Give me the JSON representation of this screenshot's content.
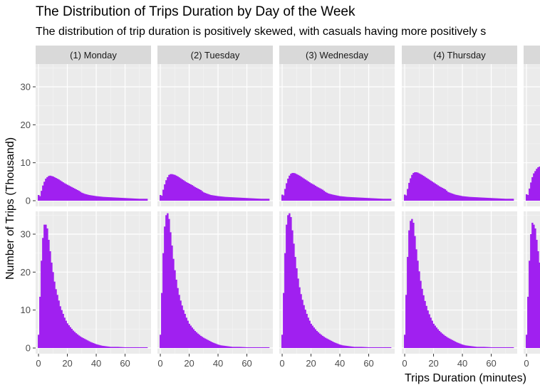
{
  "chart_data": {
    "type": "bar",
    "title": "The Distribution of Trips Duration by Day of the Week",
    "subtitle": "The distribution of trip duration is positively skewed, with casuals having more positively s",
    "xlabel": "Trips Duration (minutes)",
    "ylabel": "Number of Trips (Thousand)",
    "xlim": [
      -2,
      78
    ],
    "ylim": [
      -1.5,
      36
    ],
    "x_ticks": [
      0,
      20,
      40,
      60
    ],
    "y_ticks": [
      0,
      10,
      20,
      30
    ],
    "bar_color": "#A020F0",
    "panel_background": "#EBEBEB",
    "grid": true,
    "facets": [
      "(1) Monday",
      "(2) Tuesday",
      "(3) Wednesday",
      "(4) Thursday",
      ""
    ],
    "bin_width_minutes": 1,
    "rows": [
      {
        "row": 1,
        "series": [
          {
            "facet": "(1) Monday",
            "x": [
              0,
              1,
              2,
              3,
              4,
              5,
              6,
              7,
              8,
              9,
              10,
              12,
              14,
              16,
              18,
              20,
              22,
              24,
              26,
              28,
              30,
              32,
              35,
              40,
              45,
              50,
              55,
              60,
              65,
              70,
              75
            ],
            "values": [
              1.5,
              1.2,
              2.6,
              4.0,
              5.0,
              5.8,
              6.2,
              6.5,
              6.6,
              6.5,
              6.4,
              6.0,
              5.6,
              5.1,
              4.6,
              4.2,
              3.8,
              3.4,
              3.0,
              2.6,
              2.1,
              1.8,
              1.5,
              1.2,
              1.0,
              0.9,
              0.8,
              0.7,
              0.6,
              0.5,
              0.5
            ]
          },
          {
            "facet": "(2) Tuesday",
            "x": [
              0,
              1,
              2,
              3,
              4,
              5,
              6,
              7,
              8,
              9,
              10,
              12,
              14,
              16,
              18,
              20,
              22,
              24,
              26,
              28,
              30,
              32,
              35,
              40,
              45,
              50,
              55,
              60,
              65,
              70,
              75
            ],
            "values": [
              1.5,
              1.3,
              2.9,
              4.3,
              5.4,
              6.2,
              6.8,
              7.0,
              7.0,
              6.9,
              6.8,
              6.4,
              5.9,
              5.4,
              4.9,
              4.5,
              4.1,
              3.6,
              3.2,
              2.8,
              2.2,
              1.9,
              1.5,
              1.2,
              1.0,
              0.9,
              0.8,
              0.7,
              0.6,
              0.5,
              0.5
            ]
          },
          {
            "facet": "(3) Wednesday",
            "x": [
              0,
              1,
              2,
              3,
              4,
              5,
              6,
              7,
              8,
              9,
              10,
              12,
              14,
              16,
              18,
              20,
              22,
              24,
              26,
              28,
              30,
              32,
              35,
              40,
              45,
              50,
              55,
              60,
              65,
              70,
              75
            ],
            "values": [
              1.6,
              1.4,
              3.1,
              4.6,
              5.8,
              6.6,
              7.1,
              7.3,
              7.3,
              7.2,
              7.0,
              6.6,
              6.1,
              5.6,
              5.1,
              4.6,
              4.2,
              3.7,
              3.3,
              2.9,
              2.3,
              1.9,
              1.6,
              1.2,
              1.0,
              0.9,
              0.8,
              0.7,
              0.6,
              0.5,
              0.5
            ]
          },
          {
            "facet": "(4) Thursday",
            "x": [
              0,
              1,
              2,
              3,
              4,
              5,
              6,
              7,
              8,
              9,
              10,
              12,
              14,
              16,
              18,
              20,
              22,
              24,
              26,
              28,
              30,
              32,
              35,
              40,
              45,
              50,
              55,
              60,
              65,
              70,
              75
            ],
            "values": [
              1.6,
              1.4,
              3.1,
              4.7,
              5.9,
              6.8,
              7.3,
              7.5,
              7.5,
              7.4,
              7.2,
              6.8,
              6.3,
              5.8,
              5.3,
              4.8,
              4.3,
              3.8,
              3.4,
              3.0,
              2.3,
              2.0,
              1.6,
              1.2,
              1.0,
              0.9,
              0.8,
              0.7,
              0.6,
              0.5,
              0.5
            ]
          },
          {
            "facet": "",
            "x": [
              0,
              1,
              2,
              3,
              4,
              5,
              6,
              7,
              8,
              9,
              10,
              12,
              14,
              16,
              18,
              20
            ],
            "values": [
              1.7,
              1.5,
              3.2,
              4.8,
              6.2,
              7.2,
              7.8,
              8.4,
              8.8,
              9.0,
              8.8,
              8.2,
              7.6,
              7.0,
              6.4,
              5.8
            ]
          }
        ]
      },
      {
        "row": 2,
        "series": [
          {
            "facet": "(1) Monday",
            "x": [
              0,
              1,
              2,
              3,
              4,
              5,
              6,
              7,
              8,
              9,
              10,
              11,
              12,
              13,
              14,
              15,
              16,
              17,
              18,
              19,
              20,
              22,
              24,
              26,
              28,
              30,
              32,
              34,
              36,
              38,
              40,
              42,
              44,
              46,
              48,
              50,
              55,
              60,
              65,
              70,
              75
            ],
            "values": [
              3.5,
              13.5,
              23.0,
              29.0,
              32.5,
              32.5,
              31.5,
              28.5,
              25.5,
              22.5,
              20.0,
              17.5,
              15.5,
              14.0,
              12.5,
              11.0,
              10.0,
              9.0,
              8.0,
              7.2,
              6.5,
              5.5,
              4.6,
              3.9,
              3.3,
              2.8,
              2.4,
              2.0,
              1.6,
              1.3,
              1.0,
              0.8,
              0.6,
              0.5,
              0.4,
              0.3,
              0.3,
              0.2,
              0.2,
              0.2,
              0.2
            ]
          },
          {
            "facet": "(2) Tuesday",
            "x": [
              0,
              1,
              2,
              3,
              4,
              5,
              6,
              7,
              8,
              9,
              10,
              11,
              12,
              13,
              14,
              15,
              16,
              17,
              18,
              19,
              20,
              22,
              24,
              26,
              28,
              30,
              32,
              34,
              36,
              38,
              40,
              42,
              44,
              46,
              48,
              50,
              55,
              60,
              65,
              70,
              75
            ],
            "values": [
              3.5,
              14.5,
              25.0,
              32.0,
              35.0,
              35.5,
              34.0,
              30.5,
              27.0,
              23.5,
              20.5,
              18.0,
              15.8,
              14.0,
              12.5,
              11.2,
              10.0,
              9.0,
              8.0,
              7.2,
              6.4,
              5.4,
              4.5,
              3.8,
              3.2,
              2.7,
              2.3,
              1.9,
              1.5,
              1.2,
              0.9,
              0.7,
              0.6,
              0.5,
              0.4,
              0.3,
              0.3,
              0.2,
              0.2,
              0.2,
              0.2
            ]
          },
          {
            "facet": "(3) Wednesday",
            "x": [
              0,
              1,
              2,
              3,
              4,
              5,
              6,
              7,
              8,
              9,
              10,
              11,
              12,
              13,
              14,
              15,
              16,
              17,
              18,
              19,
              20,
              22,
              24,
              26,
              28,
              30,
              32,
              34,
              36,
              38,
              40,
              42,
              44,
              46,
              48,
              50,
              55,
              60,
              65,
              70,
              75
            ],
            "values": [
              3.5,
              14.5,
              25.0,
              32.5,
              35.0,
              35.5,
              34.5,
              31.0,
              27.5,
              24.0,
              21.0,
              18.3,
              16.0,
              14.2,
              12.7,
              11.3,
              10.1,
              9.0,
              8.0,
              7.2,
              6.4,
              5.4,
              4.5,
              3.8,
              3.2,
              2.7,
              2.3,
              1.9,
              1.5,
              1.2,
              0.9,
              0.7,
              0.6,
              0.5,
              0.4,
              0.3,
              0.3,
              0.2,
              0.2,
              0.2,
              0.2
            ]
          },
          {
            "facet": "(4) Thursday",
            "x": [
              0,
              1,
              2,
              3,
              4,
              5,
              6,
              7,
              8,
              9,
              10,
              11,
              12,
              13,
              14,
              15,
              16,
              17,
              18,
              19,
              20,
              22,
              24,
              26,
              28,
              30,
              32,
              34,
              36,
              38,
              40,
              42,
              44,
              46,
              48,
              50,
              55,
              60,
              65,
              70,
              75
            ],
            "values": [
              3.5,
              14.0,
              24.0,
              31.0,
              33.5,
              34.0,
              33.0,
              29.5,
              26.0,
              23.0,
              20.2,
              17.7,
              15.6,
              13.9,
              12.4,
              11.1,
              9.9,
              8.9,
              8.0,
              7.2,
              6.4,
              5.4,
              4.5,
              3.8,
              3.2,
              2.7,
              2.3,
              1.9,
              1.5,
              1.2,
              0.9,
              0.7,
              0.6,
              0.5,
              0.4,
              0.3,
              0.3,
              0.2,
              0.2,
              0.2,
              0.2
            ]
          },
          {
            "facet": "",
            "x": [
              0,
              1,
              2,
              3,
              4,
              5,
              6,
              7,
              8,
              9,
              10,
              11,
              12,
              13,
              14,
              15,
              16,
              17,
              18,
              19,
              20
            ],
            "values": [
              3.5,
              13.5,
              23.0,
              30.0,
              33.0,
              32.5,
              31.5,
              28.5,
              25.5,
              22.5,
              20.0,
              17.5,
              15.5,
              14.0,
              12.5,
              11.0,
              10.0,
              9.0,
              8.0,
              7.2,
              6.5
            ]
          }
        ]
      }
    ]
  }
}
